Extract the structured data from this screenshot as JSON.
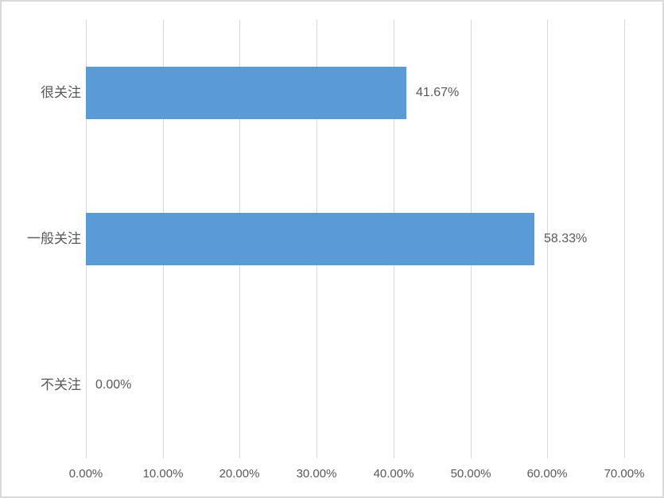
{
  "chart_data": {
    "type": "bar",
    "orientation": "horizontal",
    "title": "",
    "categories": [
      "很关注",
      "一般关注",
      "不关注"
    ],
    "values": [
      41.67,
      58.33,
      0
    ],
    "value_labels": [
      "41.67%",
      "58.33%",
      "0.00%"
    ],
    "x_axis": {
      "min": 0,
      "max": 70,
      "tick_values": [
        0,
        10,
        20,
        30,
        40,
        50,
        60,
        70
      ],
      "tick_labels": [
        "0.00%",
        "10.00%",
        "20.00%",
        "30.00%",
        "40.00%",
        "50.00%",
        "60.00%",
        "70.00%"
      ]
    },
    "grid": true,
    "legend": "none",
    "colors": {
      "bar": "#5B9BD5",
      "gridline": "#D9D9D9",
      "text": "#595959",
      "border": "#D9D9D9",
      "background": "#FFFFFF"
    }
  }
}
